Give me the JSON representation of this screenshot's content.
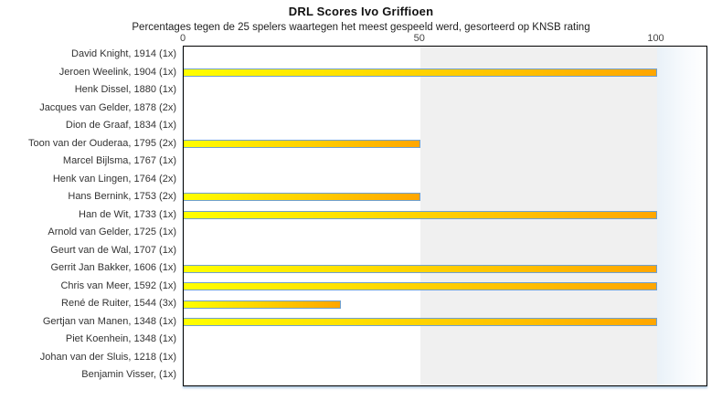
{
  "title": "DRL Scores Ivo Griffioen",
  "subtitle": "Percentages tegen de 25 spelers waartegen het meest gespeeld werd, gesorteerd op KNSB rating",
  "chart_data": {
    "type": "bar",
    "orientation": "horizontal",
    "title": "DRL Scores Ivo Griffioen",
    "subtitle": "Percentages tegen de 25 spelers waartegen het meest gespeeld werd, gesorteerd op KNSB rating",
    "categories": [
      "David Knight, 1914 (1x)",
      "Jeroen Weelink, 1904 (1x)",
      "Henk Dissel, 1880 (1x)",
      "Jacques van Gelder, 1878 (2x)",
      "Dion de Graaf, 1834 (1x)",
      "Toon van der Ouderaa, 1795 (2x)",
      "Marcel Bijlsma, 1767 (1x)",
      "Henk van Lingen, 1764 (2x)",
      "Hans Bernink, 1753 (2x)",
      "Han de Wit, 1733 (1x)",
      "Arnold van Gelder, 1725 (1x)",
      "Geurt van de Wal, 1707 (1x)",
      "Gerrit Jan Bakker, 1606 (1x)",
      "Chris van Meer, 1592 (1x)",
      "René de Ruiter, 1544 (3x)",
      "Gertjan van Manen, 1348 (1x)",
      "Piet Koenhein, 1348 (1x)",
      "Johan van der Sluis, 1218 (1x)",
      "Benjamin Visser,  (1x)"
    ],
    "values": [
      0,
      100,
      0,
      0,
      0,
      50,
      0,
      0,
      50,
      100,
      0,
      0,
      100,
      100,
      33.3,
      100,
      0,
      0,
      0
    ],
    "xlabel": "",
    "ylabel": "",
    "x_axis": {
      "position": "top",
      "ticks": [
        "0",
        "50",
        "100"
      ],
      "tick_values": [
        0,
        50,
        100
      ],
      "xlim": [
        0,
        110
      ]
    },
    "background_bands": [
      {
        "from": 0,
        "to": 50,
        "style": "white"
      },
      {
        "from": 50,
        "to": 100,
        "style": "gray"
      },
      {
        "from": 100,
        "to": 110,
        "style": "blue-white-fade"
      }
    ],
    "legend": "none",
    "grid": "off",
    "colors": {
      "bar_gradient_start": "#ffff00",
      "bar_gradient_end": "#ffa600",
      "bar_border": "#6fa0d0",
      "band_gray": "#f0f0f0",
      "plot_border": "#000000",
      "label_text": "#333333"
    }
  }
}
